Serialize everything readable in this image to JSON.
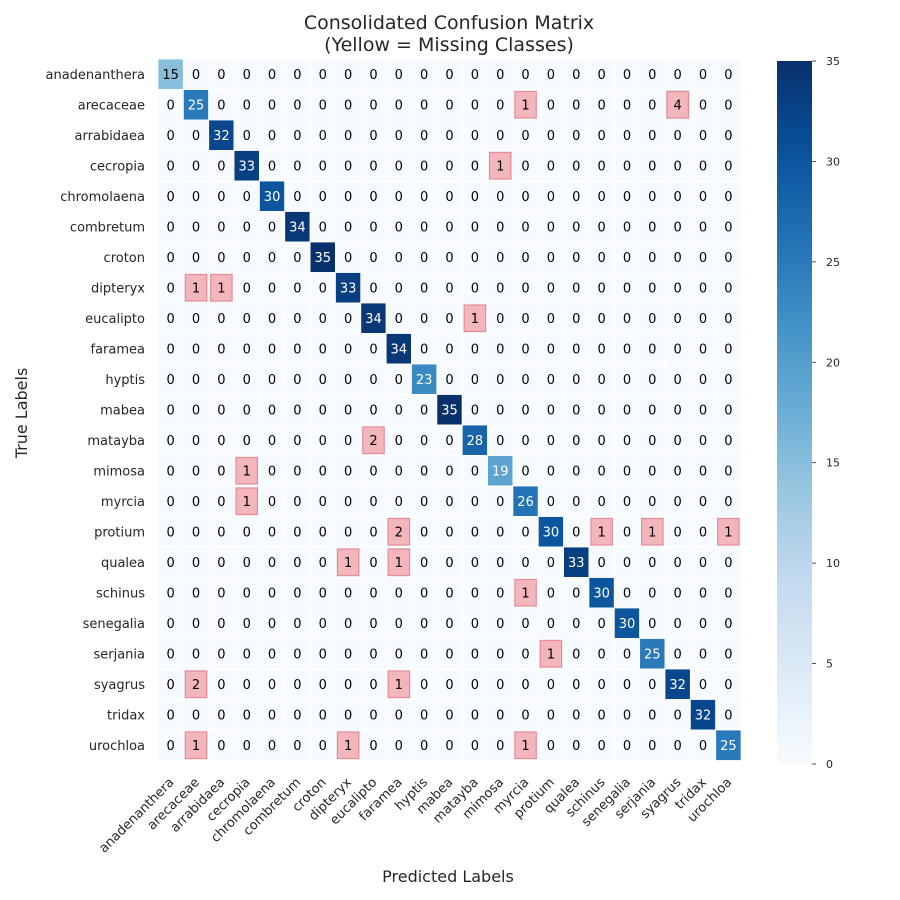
{
  "chart_data": {
    "type": "heatmap",
    "title": "Consolidated Confusion Matrix",
    "subtitle": "(Yellow = Missing Classes)",
    "xlabel": "Predicted Labels",
    "ylabel": "True Labels",
    "labels": [
      "anadenanthera",
      "arecaceae",
      "arrabidaea",
      "cecropia",
      "chromolaena",
      "combretum",
      "croton",
      "dipteryx",
      "eucalipto",
      "faramea",
      "hyptis",
      "mabea",
      "matayba",
      "mimosa",
      "myrcia",
      "protium",
      "qualea",
      "schinus",
      "senegalia",
      "serjania",
      "syagrus",
      "tridax",
      "urochloa"
    ],
    "matrix": [
      [
        15,
        0,
        0,
        0,
        0,
        0,
        0,
        0,
        0,
        0,
        0,
        0,
        0,
        0,
        0,
        0,
        0,
        0,
        0,
        0,
        0,
        0,
        0
      ],
      [
        0,
        25,
        0,
        0,
        0,
        0,
        0,
        0,
        0,
        0,
        0,
        0,
        0,
        0,
        1,
        0,
        0,
        0,
        0,
        0,
        4,
        0,
        0
      ],
      [
        0,
        0,
        32,
        0,
        0,
        0,
        0,
        0,
        0,
        0,
        0,
        0,
        0,
        0,
        0,
        0,
        0,
        0,
        0,
        0,
        0,
        0,
        0
      ],
      [
        0,
        0,
        0,
        33,
        0,
        0,
        0,
        0,
        0,
        0,
        0,
        0,
        0,
        1,
        0,
        0,
        0,
        0,
        0,
        0,
        0,
        0,
        0
      ],
      [
        0,
        0,
        0,
        0,
        30,
        0,
        0,
        0,
        0,
        0,
        0,
        0,
        0,
        0,
        0,
        0,
        0,
        0,
        0,
        0,
        0,
        0,
        0
      ],
      [
        0,
        0,
        0,
        0,
        0,
        34,
        0,
        0,
        0,
        0,
        0,
        0,
        0,
        0,
        0,
        0,
        0,
        0,
        0,
        0,
        0,
        0,
        0
      ],
      [
        0,
        0,
        0,
        0,
        0,
        0,
        35,
        0,
        0,
        0,
        0,
        0,
        0,
        0,
        0,
        0,
        0,
        0,
        0,
        0,
        0,
        0,
        0
      ],
      [
        0,
        1,
        1,
        0,
        0,
        0,
        0,
        33,
        0,
        0,
        0,
        0,
        0,
        0,
        0,
        0,
        0,
        0,
        0,
        0,
        0,
        0,
        0
      ],
      [
        0,
        0,
        0,
        0,
        0,
        0,
        0,
        0,
        34,
        0,
        0,
        0,
        1,
        0,
        0,
        0,
        0,
        0,
        0,
        0,
        0,
        0,
        0
      ],
      [
        0,
        0,
        0,
        0,
        0,
        0,
        0,
        0,
        0,
        34,
        0,
        0,
        0,
        0,
        0,
        0,
        0,
        0,
        0,
        0,
        0,
        0,
        0
      ],
      [
        0,
        0,
        0,
        0,
        0,
        0,
        0,
        0,
        0,
        0,
        23,
        0,
        0,
        0,
        0,
        0,
        0,
        0,
        0,
        0,
        0,
        0,
        0
      ],
      [
        0,
        0,
        0,
        0,
        0,
        0,
        0,
        0,
        0,
        0,
        0,
        35,
        0,
        0,
        0,
        0,
        0,
        0,
        0,
        0,
        0,
        0,
        0
      ],
      [
        0,
        0,
        0,
        0,
        0,
        0,
        0,
        0,
        2,
        0,
        0,
        0,
        28,
        0,
        0,
        0,
        0,
        0,
        0,
        0,
        0,
        0,
        0
      ],
      [
        0,
        0,
        0,
        1,
        0,
        0,
        0,
        0,
        0,
        0,
        0,
        0,
        0,
        19,
        0,
        0,
        0,
        0,
        0,
        0,
        0,
        0,
        0
      ],
      [
        0,
        0,
        0,
        1,
        0,
        0,
        0,
        0,
        0,
        0,
        0,
        0,
        0,
        0,
        26,
        0,
        0,
        0,
        0,
        0,
        0,
        0,
        0
      ],
      [
        0,
        0,
        0,
        0,
        0,
        0,
        0,
        0,
        0,
        2,
        0,
        0,
        0,
        0,
        0,
        30,
        0,
        1,
        0,
        1,
        0,
        0,
        1
      ],
      [
        0,
        0,
        0,
        0,
        0,
        0,
        0,
        1,
        0,
        1,
        0,
        0,
        0,
        0,
        0,
        0,
        33,
        0,
        0,
        0,
        0,
        0,
        0
      ],
      [
        0,
        0,
        0,
        0,
        0,
        0,
        0,
        0,
        0,
        0,
        0,
        0,
        0,
        0,
        1,
        0,
        0,
        30,
        0,
        0,
        0,
        0,
        0
      ],
      [
        0,
        0,
        0,
        0,
        0,
        0,
        0,
        0,
        0,
        0,
        0,
        0,
        0,
        0,
        0,
        0,
        0,
        0,
        30,
        0,
        0,
        0,
        0
      ],
      [
        0,
        0,
        0,
        0,
        0,
        0,
        0,
        0,
        0,
        0,
        0,
        0,
        0,
        0,
        0,
        1,
        0,
        0,
        0,
        25,
        0,
        0,
        0
      ],
      [
        0,
        2,
        0,
        0,
        0,
        0,
        0,
        0,
        0,
        1,
        0,
        0,
        0,
        0,
        0,
        0,
        0,
        0,
        0,
        0,
        32,
        0,
        0
      ],
      [
        0,
        0,
        0,
        0,
        0,
        0,
        0,
        0,
        0,
        0,
        0,
        0,
        0,
        0,
        0,
        0,
        0,
        0,
        0,
        0,
        0,
        32,
        0
      ],
      [
        0,
        1,
        0,
        0,
        0,
        0,
        0,
        1,
        0,
        0,
        0,
        0,
        0,
        0,
        1,
        0,
        0,
        0,
        0,
        0,
        0,
        0,
        25
      ]
    ],
    "colorbar": {
      "min": 0,
      "max": 35,
      "ticks": [
        0,
        5,
        10,
        15,
        20,
        25,
        30,
        35
      ],
      "colormap": "Blues"
    },
    "misclassification_highlight": "#f4b6bd",
    "grid": false
  }
}
